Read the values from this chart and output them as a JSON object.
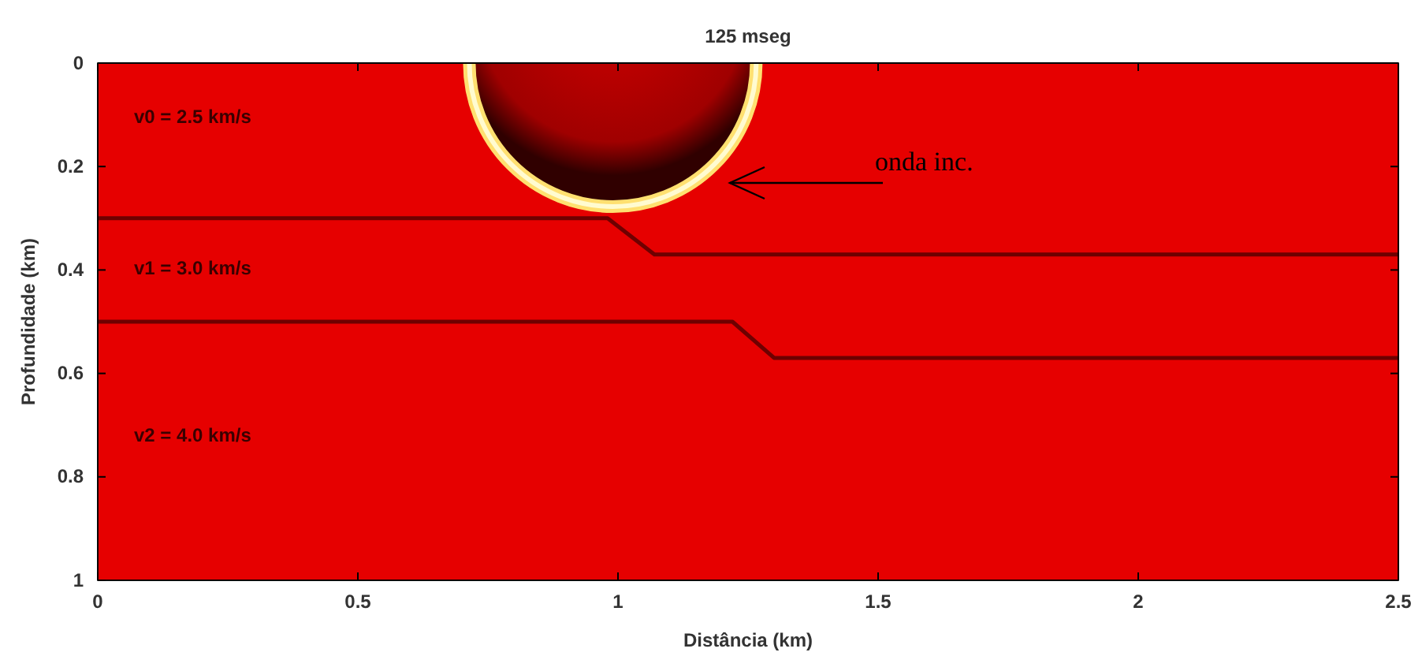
{
  "chart_data": {
    "type": "line",
    "title": "125 mseg",
    "xlabel": "Distância (km)",
    "ylabel": "Profundidade (km)",
    "xlim": [
      0,
      2.5
    ],
    "xticks": [
      0,
      0.5,
      1,
      1.5,
      2,
      2.5
    ],
    "ylim": [
      1,
      0
    ],
    "yticks": [
      0,
      0.2,
      0.4,
      0.6,
      0.8,
      1
    ],
    "grid": false,
    "marker": "none",
    "line_style": "solid",
    "series": [
      {
        "color": "#6e0000",
        "x": [
          0,
          0.98,
          1.07,
          2.5
        ],
        "values": [
          0.3,
          0.3,
          0.37,
          0.37
        ]
      },
      {
        "color": "#6e0000",
        "x": [
          0,
          1.22,
          1.3,
          2.5
        ],
        "values": [
          0.5,
          0.5,
          0.57,
          0.57
        ]
      }
    ],
    "annotations": [
      "v0 = 2.5 km/s",
      "v1 = 3.0 km/s",
      "v2 = 4.0 km/s",
      "onda inc."
    ]
  }
}
